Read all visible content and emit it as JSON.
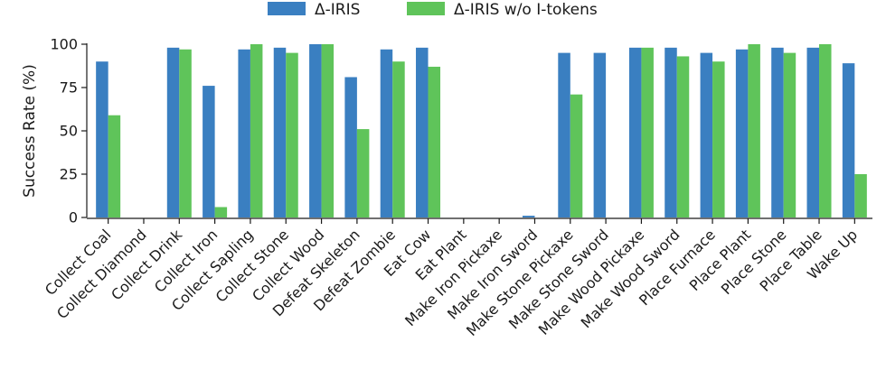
{
  "chart_data": {
    "type": "bar",
    "title": "",
    "xlabel": "",
    "ylabel": "Success Rate (%)",
    "ylim": [
      0,
      100
    ],
    "yticks": [
      0,
      25,
      50,
      75,
      100
    ],
    "grid": false,
    "legend": "top-center",
    "categories": [
      "Collect Coal",
      "Collect Diamond",
      "Collect Drink",
      "Collect Iron",
      "Collect Sapling",
      "Collect Stone",
      "Collect Wood",
      "Defeat Skeleton",
      "Defeat Zombie",
      "Eat Cow",
      "Eat Plant",
      "Make Iron Pickaxe",
      "Make Iron Sword",
      "Make Stone Pickaxe",
      "Make Stone Sword",
      "Make Wood Pickaxe",
      "Make Wood Sword",
      "Place Furnace",
      "Place Plant",
      "Place Stone",
      "Place Table",
      "Wake Up"
    ],
    "series": [
      {
        "name": "Δ-IRIS",
        "color": "#3a7fc1",
        "values": [
          90,
          0,
          98,
          76,
          97,
          98,
          100,
          81,
          97,
          98,
          0,
          0,
          1,
          95,
          95,
          98,
          98,
          95,
          97,
          98,
          98,
          89
        ]
      },
      {
        "name": "Δ-IRIS w/o I-tokens",
        "color": "#5fc45a",
        "values": [
          59,
          0,
          97,
          6,
          100,
          95,
          100,
          51,
          90,
          87,
          0,
          0,
          0,
          71,
          0,
          98,
          93,
          90,
          100,
          95,
          100,
          25
        ]
      }
    ]
  }
}
